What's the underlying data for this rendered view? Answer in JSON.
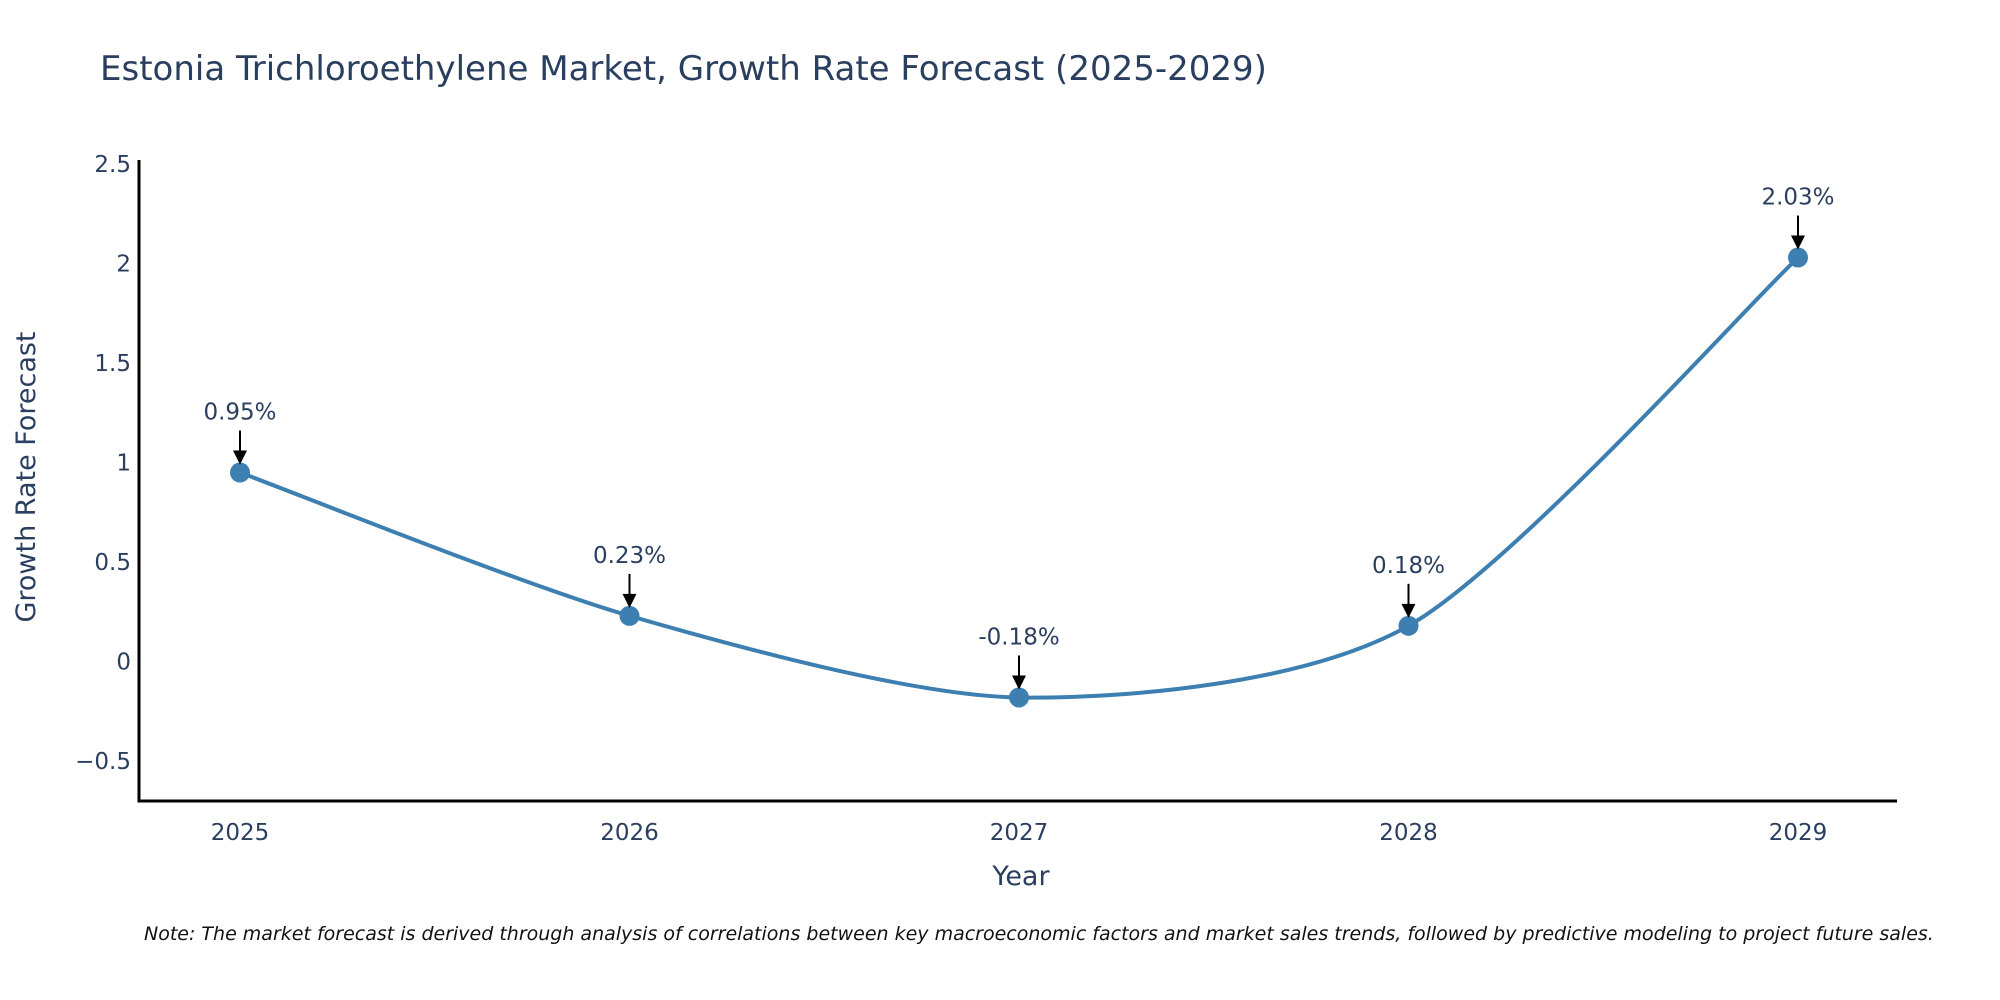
{
  "colors": {
    "line": "#3d7fb0",
    "marker": "#3d7fb0",
    "axis": "#000000",
    "text": "#2a3f5f",
    "arrow": "#000000"
  },
  "chart_data": {
    "type": "line",
    "title": "Estonia Trichloroethylene Market, Growth Rate Forecast (2025-2029)",
    "xlabel": "Year",
    "ylabel": "Growth Rate Forecast",
    "categories": [
      "2025",
      "2026",
      "2027",
      "2028",
      "2029"
    ],
    "series": [
      {
        "name": "Growth Rate Forecast",
        "values": [
          0.95,
          0.23,
          -0.18,
          0.18,
          2.03
        ],
        "labels": [
          "0.95%",
          "0.23%",
          "-0.18%",
          "0.18%",
          "2.03%"
        ]
      }
    ],
    "ylim": [
      -0.7,
      2.52
    ],
    "yticks": [
      -0.5,
      0,
      0.5,
      1,
      1.5,
      2,
      2.5
    ],
    "ytick_labels": [
      "−0.5",
      "0",
      "0.5",
      "1",
      "1.5",
      "2",
      "2.5"
    ],
    "grid": false,
    "line_shape": "spline",
    "note": "Note: The market forecast is derived through analysis of correlations between key macroeconomic factors and market sales trends, followed by predictive modeling to project future sales."
  }
}
